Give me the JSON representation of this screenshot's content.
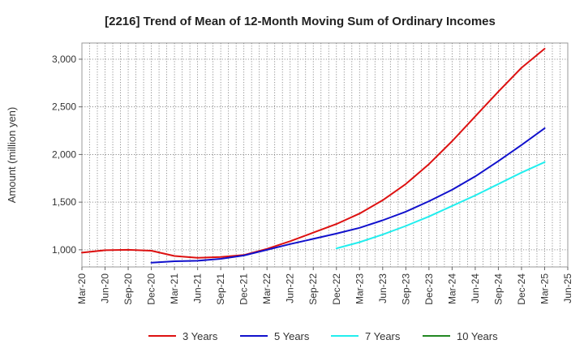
{
  "chart_data": {
    "type": "line",
    "title": "[2216]  Trend of Mean of 12-Month Moving Sum of Ordinary Incomes",
    "xlabel": "",
    "ylabel": "Amount (million yen)",
    "ylim": [
      820,
      3170
    ],
    "yticks": [
      1000,
      1500,
      2000,
      2500,
      3000
    ],
    "ytick_labels": [
      "1,000",
      "1,500",
      "2,000",
      "2,500",
      "3,000"
    ],
    "categories": [
      "Mar-20",
      "Jun-20",
      "Sep-20",
      "Dec-20",
      "Mar-21",
      "Jun-21",
      "Sep-21",
      "Dec-21",
      "Mar-22",
      "Jun-22",
      "Sep-22",
      "Dec-22",
      "Mar-23",
      "Jun-23",
      "Sep-23",
      "Dec-23",
      "Mar-24",
      "Jun-24",
      "Sep-24",
      "Dec-24",
      "Mar-25",
      "Jun-25"
    ],
    "grid": true,
    "legend_position": "bottom",
    "series": [
      {
        "name": "3 Years",
        "color": "#dd1111",
        "values": [
          970,
          995,
          1000,
          990,
          935,
          915,
          925,
          945,
          1010,
          1090,
          1180,
          1270,
          1380,
          1520,
          1690,
          1900,
          2140,
          2400,
          2660,
          2910,
          3110,
          null
        ]
      },
      {
        "name": "5 Years",
        "color": "#1111cc",
        "values": [
          null,
          null,
          null,
          865,
          880,
          885,
          905,
          940,
          1000,
          1060,
          1115,
          1170,
          1230,
          1310,
          1400,
          1510,
          1630,
          1770,
          1930,
          2100,
          2275,
          null
        ]
      },
      {
        "name": "7 Years",
        "color": "#22eeee",
        "values": [
          null,
          null,
          null,
          null,
          null,
          null,
          null,
          null,
          null,
          null,
          null,
          1015,
          1080,
          1160,
          1250,
          1350,
          1460,
          1570,
          1690,
          1810,
          1920,
          null
        ]
      },
      {
        "name": "10 Years",
        "color": "#228822",
        "values": [
          null,
          null,
          null,
          null,
          null,
          null,
          null,
          null,
          null,
          null,
          null,
          null,
          null,
          null,
          null,
          null,
          null,
          null,
          null,
          null,
          null,
          null
        ]
      }
    ]
  }
}
